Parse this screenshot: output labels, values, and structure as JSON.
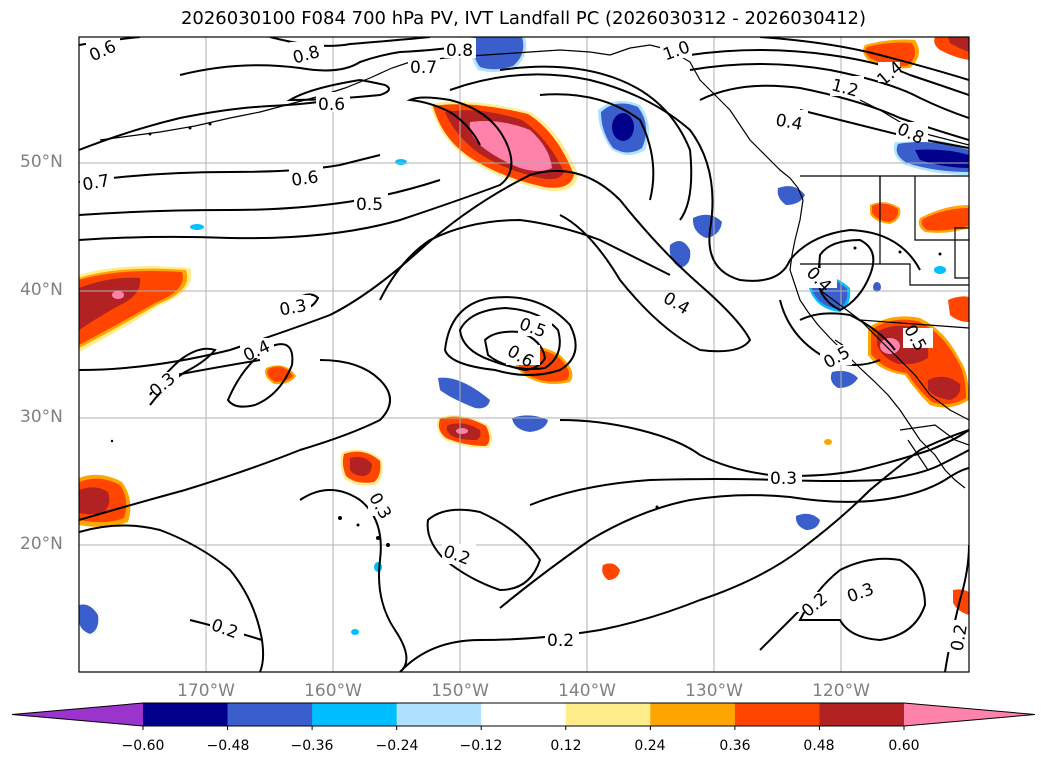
{
  "title": "2026030100 F084 700 hPa PV, IVT Landfall PC (2026030312 - 2026030412)",
  "lat_labels": [
    "50°N",
    "40°N",
    "30°N",
    "20°N"
  ],
  "lon_labels": [
    "170°W",
    "160°W",
    "150°W",
    "140°W",
    "130°W",
    "120°W"
  ],
  "contour_labels": [
    "0.6",
    "0.8",
    "0.7",
    "0.8",
    "1.0",
    "1.2",
    "1.4",
    "0.6",
    "0.4",
    "0.8",
    "0.7",
    "0.6",
    "0.5",
    "0.3",
    "0.4",
    "0.3",
    "0.5",
    "0.6",
    "0.4",
    "0.4",
    "0.5",
    "0.5",
    "0.3",
    "0.3",
    "0.2",
    "0.2",
    "0.2",
    "0.2",
    "0.3",
    "0.2"
  ],
  "colorbar": {
    "tick_labels": [
      "−0.60",
      "−0.48",
      "−0.36",
      "−0.24",
      "−0.12",
      "0.12",
      "0.24",
      "0.36",
      "0.48",
      "0.60"
    ],
    "colors": [
      "#9a34cc",
      "#00008b",
      "#3a5fcd",
      "#00bfff",
      "#b0e2ff",
      "#ffffff",
      "#ffec8b",
      "#ffa500",
      "#ff4500",
      "#b22222",
      "#ff82ab"
    ]
  },
  "colors": {
    "pink": "#ff82ab",
    "darkred": "#b22222",
    "orangered": "#ff4500",
    "orange": "#ffa500",
    "yellow": "#ffec8b",
    "navy": "#00008b",
    "royal": "#3a5fcd",
    "sky": "#00bfff",
    "light": "#b0e2ff"
  }
}
